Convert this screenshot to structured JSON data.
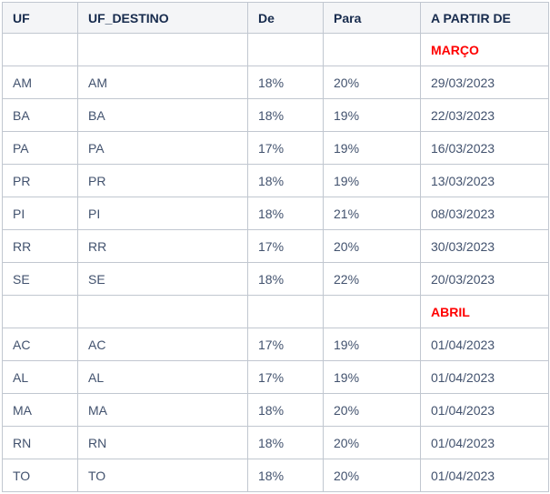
{
  "table": {
    "columns": [
      {
        "key": "uf",
        "label": "UF"
      },
      {
        "key": "uf_destino",
        "label": "UF_DESTINO"
      },
      {
        "key": "de",
        "label": "De"
      },
      {
        "key": "para",
        "label": "Para"
      },
      {
        "key": "a_partir_de",
        "label": "A PARTIR DE"
      }
    ],
    "rows": [
      {
        "month": true,
        "uf": "",
        "uf_destino": "",
        "de": "",
        "para": "",
        "a_partir_de": "MARÇO"
      },
      {
        "month": false,
        "uf": "AM",
        "uf_destino": "AM",
        "de": "18%",
        "para": "20%",
        "a_partir_de": "29/03/2023"
      },
      {
        "month": false,
        "uf": "BA",
        "uf_destino": "BA",
        "de": "18%",
        "para": "19%",
        "a_partir_de": "22/03/2023"
      },
      {
        "month": false,
        "uf": "PA",
        "uf_destino": "PA",
        "de": "17%",
        "para": "19%",
        "a_partir_de": "16/03/2023"
      },
      {
        "month": false,
        "uf": "PR",
        "uf_destino": "PR",
        "de": "18%",
        "para": "19%",
        "a_partir_de": "13/03/2023"
      },
      {
        "month": false,
        "uf": "PI",
        "uf_destino": "PI",
        "de": "18%",
        "para": "21%",
        "a_partir_de": "08/03/2023"
      },
      {
        "month": false,
        "uf": "RR",
        "uf_destino": "RR",
        "de": "17%",
        "para": "20%",
        "a_partir_de": "30/03/2023"
      },
      {
        "month": false,
        "uf": "SE",
        "uf_destino": "SE",
        "de": "18%",
        "para": "22%",
        "a_partir_de": "20/03/2023"
      },
      {
        "month": true,
        "uf": "",
        "uf_destino": "",
        "de": "",
        "para": "",
        "a_partir_de": "ABRIL"
      },
      {
        "month": false,
        "uf": "AC",
        "uf_destino": "AC",
        "de": "17%",
        "para": "19%",
        "a_partir_de": "01/04/2023"
      },
      {
        "month": false,
        "uf": "AL",
        "uf_destino": "AL",
        "de": "17%",
        "para": "19%",
        "a_partir_de": "01/04/2023"
      },
      {
        "month": false,
        "uf": "MA",
        "uf_destino": "MA",
        "de": "18%",
        "para": "20%",
        "a_partir_de": "01/04/2023"
      },
      {
        "month": false,
        "uf": "RN",
        "uf_destino": "RN",
        "de": "18%",
        "para": "20%",
        "a_partir_de": "01/04/2023"
      },
      {
        "month": false,
        "uf": "TO",
        "uf_destino": "TO",
        "de": "18%",
        "para": "20%",
        "a_partir_de": "01/04/2023"
      }
    ],
    "colors": {
      "header_bg": "#f4f5f7",
      "header_text": "#172b4d",
      "body_text": "#42526e",
      "month_text": "#ff0000",
      "border": "#c1c7d0"
    }
  }
}
